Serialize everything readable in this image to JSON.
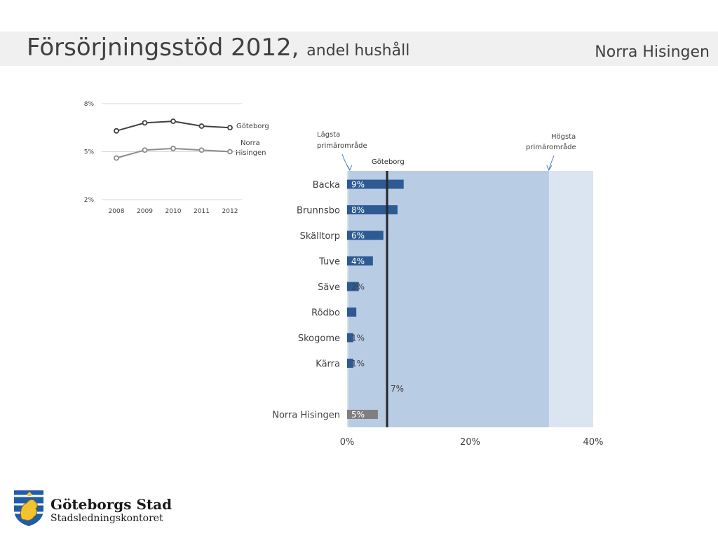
{
  "header": {
    "title": "Försörjningsstöd 2012,",
    "subtitle": "andel hushåll",
    "region": "Norra Hisingen"
  },
  "line_chart_labels": {
    "series1": "Göteborg",
    "series2_line1": "Norra",
    "series2_line2": "Hisingen"
  },
  "bar_chart_labels": {
    "lowest_line1": "Lägsta",
    "lowest_line2": "primärområde",
    "highest_line1": "Högsta",
    "highest_line2": "primärområde",
    "reference_label": "Göteborg",
    "reference_value_label": "7%"
  },
  "logo": {
    "name": "Göteborgs Stad",
    "department": "Stadsledningskontoret"
  },
  "colors": {
    "bar": "#2e5a94",
    "total_bar": "#7f7f7f",
    "range_band": "#b8cce4",
    "range_band_light": "#dbe5f1",
    "reference_line": "#262626",
    "series_goteborg": "#404040",
    "series_norra": "#8c8c8c"
  },
  "chart_data": [
    {
      "type": "line",
      "x": [
        "2008",
        "2009",
        "2010",
        "2011",
        "2012"
      ],
      "ylim": [
        2,
        8
      ],
      "yticks": [
        "8%",
        "5%",
        "2%"
      ],
      "series": [
        {
          "name": "Göteborg",
          "values": [
            6.3,
            6.8,
            6.9,
            6.6,
            6.5
          ]
        },
        {
          "name": "Norra Hisingen",
          "values": [
            4.6,
            5.1,
            5.2,
            5.1,
            5.0
          ]
        }
      ]
    },
    {
      "type": "bar",
      "orientation": "horizontal",
      "categories": [
        "Backa",
        "Brunnsbo",
        "Skälltorp",
        "Tuve",
        "Säve",
        "Rödbo",
        "Skogome",
        "Kärra",
        "",
        "Norra Hisingen"
      ],
      "values": [
        9.2,
        8.2,
        5.9,
        4.2,
        1.9,
        1.5,
        1.0,
        1.0,
        null,
        5.0
      ],
      "value_labels": [
        "9%",
        "8%",
        "6%",
        "4%",
        "2%",
        "..",
        "1%",
        "1%",
        "",
        "5%"
      ],
      "xlim": [
        0,
        40
      ],
      "xticks": [
        "0%",
        "20%",
        "40%"
      ],
      "reference": {
        "name": "Göteborg",
        "value": 6.5,
        "label": "7%"
      },
      "range": {
        "lowest": 0.2,
        "highest": 32.8
      }
    }
  ]
}
